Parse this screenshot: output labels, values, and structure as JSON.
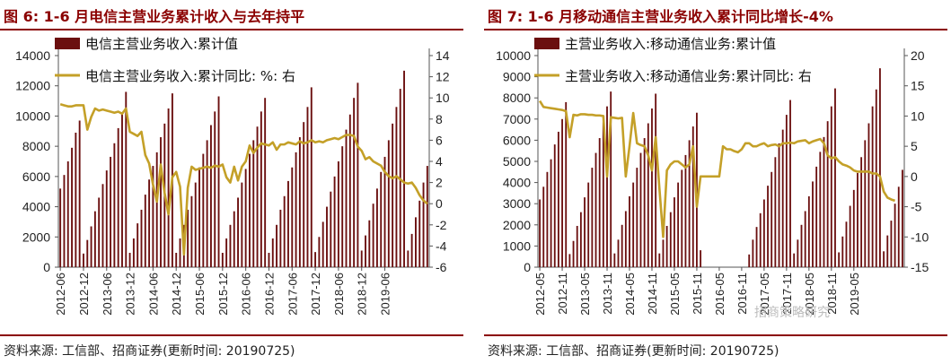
{
  "panels": [
    {
      "title": "图 6:  1-6 月电信主营业务累计收入与去年持平",
      "source": "资料来源:  工信部、招商证券(更新时间:  20190725)"
    },
    {
      "title": "图 7:  1-6 月移动通信主营业务收入累计同比增长-4%",
      "source": "资料来源:  工信部、招商证券(更新时间:  20190725)"
    }
  ],
  "watermark": "招商策略研究",
  "colors": {
    "bar": "#6B0F0F",
    "line": "#C4A028",
    "title": "#8B0000",
    "rule": "#8B0000"
  },
  "chart_data": [
    {
      "type": "bar+line",
      "x_tick_labels": [
        "2012-06",
        "2012-12",
        "2013-06",
        "2013-12",
        "2014-06",
        "2014-12",
        "2015-06",
        "2015-12",
        "2016-06",
        "2016-12",
        "2017-06",
        "2017-12",
        "2018-06",
        "2018-12",
        "2019-06"
      ],
      "x_start": "2012-06",
      "ylim_left": [
        0,
        14000
      ],
      "yticks_left": [
        "0",
        "2000",
        "4000",
        "6000",
        "8000",
        "10000",
        "12000",
        "14000"
      ],
      "ylim_right": [
        -6,
        14
      ],
      "yticks_right": [
        "-6",
        "-4",
        "-2",
        "0",
        "2",
        "4",
        "6",
        "8",
        "10",
        "12",
        "14"
      ],
      "series": [
        {
          "name": "电信主营业务收入:累计值",
          "axis": "left",
          "kind": "bar",
          "values": [
            5200,
            6100,
            7000,
            7900,
            8900,
            9700,
            900,
            1800,
            2700,
            3700,
            4600,
            5500,
            6400,
            7300,
            8200,
            9200,
            10100,
            11600,
            950,
            1900,
            2900,
            3800,
            4800,
            5800,
            6700,
            7600,
            8600,
            9500,
            10500,
            11500,
            950,
            1900,
            2800,
            3800,
            4700,
            5600,
            6600,
            7500,
            8400,
            9400,
            10300,
            11300,
            950,
            1900,
            2800,
            3700,
            4600,
            5600,
            6500,
            7500,
            8400,
            9300,
            10300,
            11200,
            950,
            1900,
            2800,
            3800,
            4700,
            5700,
            6600,
            7600,
            8600,
            9600,
            10600,
            11900,
            1000,
            2000,
            3000,
            4000,
            5000,
            6000,
            7000,
            8000,
            9100,
            10100,
            11200,
            12200,
            1100,
            2100,
            3100,
            4200,
            5200,
            6300,
            7300,
            8400,
            9500,
            10600,
            11800,
            13000,
            1100,
            2200,
            3300,
            4400,
            5600,
            6700
          ]
        },
        {
          "name": "电信主营业务收入:累计同比:  %:  右",
          "axis": "right",
          "kind": "line",
          "values": [
            9.4,
            9.3,
            9.2,
            9.2,
            9.3,
            9.3,
            9.3,
            7.0,
            8.2,
            9.0,
            8.8,
            8.9,
            8.8,
            8.7,
            8.6,
            8.7,
            8.5,
            9.0,
            6.8,
            6.6,
            6.4,
            6.8,
            4.6,
            3.8,
            1.8,
            0.2,
            3.7,
            1.0,
            -1.0,
            2.5,
            3.0,
            1.6,
            -4.8,
            1.5,
            3.5,
            3.2,
            3.3,
            3.4,
            3.5,
            3.4,
            3.6,
            3.5,
            3.7,
            2.5,
            2.0,
            3.5,
            2.2,
            3.5,
            4.0,
            5.5,
            4.8,
            5.3,
            5.7,
            5.6,
            5.5,
            5.8,
            5.1,
            5.6,
            5.6,
            5.8,
            5.7,
            5.6,
            5.9,
            5.7,
            5.8,
            6.0,
            5.8,
            5.9,
            5.8,
            6.0,
            6.1,
            6.2,
            6.1,
            6.3,
            6.5,
            6.5,
            6.4,
            5.4,
            5.0,
            4.2,
            4.4,
            4.0,
            3.8,
            3.6,
            3.0,
            2.6,
            2.4,
            2.6,
            2.3,
            2.0,
            1.9,
            2.0,
            1.5,
            0.8,
            0.3,
            0.0
          ]
        }
      ]
    },
    {
      "type": "bar+line",
      "x_tick_labels": [
        "2012-05",
        "2012-11",
        "2013-05",
        "2013-11",
        "2014-05",
        "2014-11",
        "2015-05",
        "2015-11",
        "2016-05",
        "2016-11",
        "2017-05",
        "2017-11",
        "2018-05",
        "2018-11",
        "2019-05"
      ],
      "x_start": "2012-05",
      "ylim_left": [
        0,
        10000
      ],
      "yticks_left": [
        "0",
        "1000",
        "2000",
        "3000",
        "4000",
        "5000",
        "6000",
        "7000",
        "8000",
        "9000",
        "10000"
      ],
      "ylim_right": [
        -15,
        20
      ],
      "yticks_right": [
        "-15",
        "-10",
        "-5",
        "0",
        "5",
        "10",
        "15",
        "20"
      ],
      "series": [
        {
          "name": "主营业务收入:移动通信业务:累计值",
          "axis": "left",
          "kind": "bar",
          "values": [
            3200,
            3800,
            4500,
            5100,
            5800,
            6400,
            7000,
            7800,
            620,
            1240,
            1950,
            2600,
            3300,
            4000,
            4700,
            5400,
            6100,
            6850,
            7600,
            8300,
            650,
            1300,
            2000,
            2650,
            3350,
            4000,
            4700,
            5400,
            6100,
            6800,
            7500,
            8200,
            650,
            1300,
            1950,
            2600,
            3300,
            4000,
            4600,
            5300,
            6000,
            6650,
            7300,
            800,
            0,
            0,
            0,
            0,
            0,
            0,
            0,
            0,
            0,
            0,
            0,
            0,
            600,
            1300,
            1900,
            2550,
            3200,
            3850,
            4500,
            5200,
            5850,
            6500,
            7200,
            7900,
            650,
            1300,
            2000,
            2650,
            3350,
            4050,
            4750,
            5450,
            6150,
            6900,
            7600,
            8450,
            700,
            1450,
            2150,
            2900,
            3650,
            4450,
            5200,
            6000,
            6800,
            7600,
            8400,
            9400,
            750,
            1500,
            2200,
            3000,
            3800,
            4600
          ]
        },
        {
          "name": "主营业务收入:移动通信业务:累计同比:  右",
          "axis": "right",
          "kind": "line",
          "values": [
            12.5,
            11.5,
            11.4,
            11.3,
            11.2,
            11.1,
            11.0,
            10.8,
            6.5,
            10.2,
            10.1,
            10.3,
            10.3,
            10.2,
            10.2,
            10.1,
            10.1,
            10.0,
            0.0,
            9.8,
            9.7,
            9.6,
            9.7,
            0.0,
            5.0,
            10.5,
            5.5,
            5.2,
            5.0,
            3.5,
            1.0,
            6.5,
            -2.0,
            -10.0,
            1.0,
            2.0,
            2.5,
            2.5,
            2.0,
            1.5,
            2.0,
            5.0,
            -5.0,
            0.0,
            0.0,
            0.0,
            0.0,
            0.0,
            0.0,
            5.0,
            4.5,
            4.5,
            4.2,
            4.0,
            4.5,
            5.5,
            5.5,
            5.0,
            5.0,
            5.3,
            5.5,
            5.0,
            5.2,
            5.3,
            5.0,
            5.5,
            5.5,
            5.6,
            5.5,
            5.8,
            5.9,
            6.0,
            5.5,
            5.8,
            6.0,
            6.2,
            5.5,
            3.5,
            3.0,
            3.2,
            2.5,
            2.0,
            1.8,
            1.5,
            1.0,
            0.8,
            0.8,
            0.8,
            0.8,
            0.5,
            0.5,
            0.0,
            -2.5,
            -3.5,
            -3.8,
            -4.0
          ]
        }
      ]
    }
  ]
}
